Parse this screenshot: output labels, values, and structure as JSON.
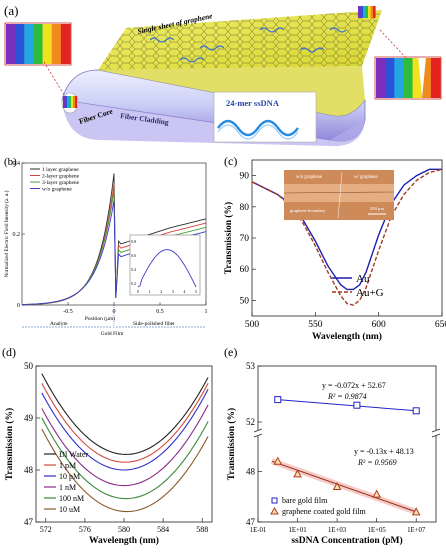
{
  "panels": {
    "a": {
      "label": "(a)",
      "graphene_sheet": "Single sheet of graphene",
      "fiber_core": "Fiber Core",
      "fiber_cladding": "Fiber Cladding",
      "dna": "24-mer ssDNA",
      "colors": [
        "#7b2fbe",
        "#2b52d6",
        "#24a7e0",
        "#2dbd3a",
        "#f3e11f",
        "#f08a1c",
        "#e3231f"
      ]
    },
    "b": {
      "label": "(b)"
    },
    "c": {
      "label": "(c)"
    },
    "d": {
      "label": "(d)"
    },
    "e": {
      "label": "(e)"
    }
  },
  "chart_data": [
    {
      "id": "b",
      "type": "line",
      "ylabel": "Normalized Electric Field Intensity (a. u.)",
      "xlabel": "Position (μm)",
      "xlim": [
        -1,
        1
      ],
      "ylim": [
        0,
        0.4
      ],
      "xticks": [
        "-0.5",
        "0",
        "0.5",
        "1"
      ],
      "yticks": [
        "0",
        "0.2",
        "0.4"
      ],
      "series": [
        {
          "name": "1 layer graphene",
          "color": "#2d2d2d",
          "peak": 0.39
        },
        {
          "name": "2-layer graphene",
          "color": "#d4433a",
          "peak": 0.36
        },
        {
          "name": "3-layer graphene",
          "color": "#4a9c3c",
          "peak": 0.34
        },
        {
          "name": "w/o graphene",
          "color": "#3c3cc8",
          "peak": 0.31
        }
      ],
      "regions": [
        "Analyte",
        "Gold Film",
        "Side-polished fiber"
      ],
      "inset": {
        "xticks": [
          "0",
          "1",
          "2",
          "3",
          "4",
          "5"
        ],
        "yticks": [
          "0.2",
          "0.4",
          "0.6",
          "0.8"
        ]
      }
    },
    {
      "id": "c",
      "type": "line",
      "xlabel": "Wavelength (nm)",
      "ylabel": "Transmission (%)",
      "xlim": [
        500,
        650
      ],
      "ylim": [
        45,
        95
      ],
      "xticks": [
        500,
        550,
        600,
        650
      ],
      "yticks": [
        50,
        60,
        70,
        80,
        90
      ],
      "series": [
        {
          "name": "Au",
          "color": "#1f1fb4",
          "dash": false,
          "x": [
            500,
            510,
            520,
            530,
            540,
            550,
            560,
            570,
            575,
            580,
            585,
            590,
            600,
            610,
            620,
            630,
            640,
            650
          ],
          "y": [
            88,
            86,
            84,
            81,
            76,
            69,
            61,
            55,
            53.5,
            53.5,
            55,
            59,
            71,
            81,
            87,
            90,
            92,
            92
          ]
        },
        {
          "name": "Au+G",
          "color": "#a23a1e",
          "dash": true,
          "x": [
            500,
            510,
            520,
            530,
            540,
            550,
            560,
            570,
            575,
            580,
            585,
            590,
            600,
            610,
            620,
            630,
            640,
            650
          ],
          "y": [
            88,
            86,
            84,
            80.5,
            75,
            67.5,
            59,
            51.5,
            49,
            48.5,
            50,
            54,
            66,
            77,
            84,
            88.5,
            91,
            92
          ]
        }
      ],
      "inset_photo": {
        "labels": [
          "w/o graphene",
          "w/ graphene",
          "graphene boundary",
          "200 μm"
        ]
      }
    },
    {
      "id": "d",
      "type": "line",
      "xlabel": "Wavelength (nm)",
      "ylabel": "Transmission (%)",
      "xlim": [
        571,
        589
      ],
      "ylim": [
        47,
        50
      ],
      "xticks": [
        572,
        576,
        580,
        584,
        588
      ],
      "yticks": [
        47,
        48,
        49,
        50
      ],
      "series": [
        {
          "name": "DI Water",
          "color": "#222222",
          "min_x": 580.2,
          "min_y": 48.3
        },
        {
          "name": "1 pM",
          "color": "#d24a3a",
          "min_x": 580.1,
          "min_y": 48.15
        },
        {
          "name": "10 pM",
          "color": "#2f2fc8",
          "min_x": 580.0,
          "min_y": 48.0
        },
        {
          "name": "1 nM",
          "color": "#8a2c8a",
          "min_x": 580.0,
          "min_y": 47.7
        },
        {
          "name": "100 nM",
          "color": "#3a8a3a",
          "min_x": 580.2,
          "min_y": 47.45
        },
        {
          "name": "10 uM",
          "color": "#8a5a2a",
          "min_x": 580.3,
          "min_y": 47.2
        }
      ]
    },
    {
      "id": "e",
      "type": "scatter",
      "xlabel": "ssDNA Concentration (pM)",
      "ylabel": "Transmission (%)",
      "xscale": "log",
      "xlim": [
        0.1,
        100000000
      ],
      "xticks": [
        "1E-01",
        "1E+01",
        "1E+03",
        "1E+05",
        "1E+07"
      ],
      "yticks": [
        47,
        48,
        52,
        53
      ],
      "y_break": true,
      "series": [
        {
          "name": "bare gold film",
          "color": "#2323c8",
          "marker": "square",
          "x": [
            1,
            10000,
            10000000
          ],
          "y": [
            52.4,
            52.3,
            52.2
          ],
          "fit": "y = -0.072x + 52.67",
          "r2": "R² = 0.9874"
        },
        {
          "name": "graphene coated gold film",
          "color": "#b03a1e",
          "marker": "triangle",
          "x": [
            1,
            10,
            1000,
            100000,
            10000000
          ],
          "y": [
            48.2,
            47.95,
            47.7,
            47.55,
            47.2
          ],
          "fit": "y = -0.13x + 48.13",
          "r2": "R² = 0.9569"
        }
      ]
    }
  ]
}
